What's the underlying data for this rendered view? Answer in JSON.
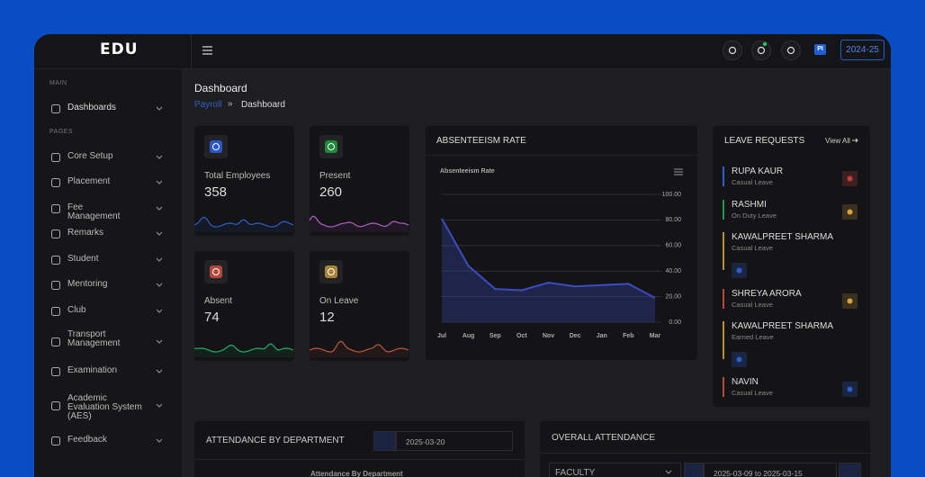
{
  "brand": "EDU",
  "topbar": {
    "avatar": "PI",
    "session": "2024-25"
  },
  "sidebar": {
    "sections": [
      {
        "label": "MAIN",
        "items": [
          "Dashboards"
        ]
      },
      {
        "label": "PAGES",
        "items": [
          "Core Setup",
          "Placement",
          "Fee Management",
          "Remarks",
          "Student",
          "Mentoring",
          "Club",
          "Transport Management",
          "Examination",
          "Academic Evaluation System (AES)",
          "Feedback"
        ]
      }
    ]
  },
  "header": {
    "title": "Dashboard",
    "breadcrumb": [
      "Payroll",
      "Dashboard"
    ]
  },
  "stats": [
    {
      "label": "Total Employees",
      "value": 358
    },
    {
      "label": "Present",
      "value": 260
    },
    {
      "label": "Absent",
      "value": 74
    },
    {
      "label": "On Leave",
      "value": 12
    }
  ],
  "absenteeism_card": {
    "title": "ABSENTEEISM RATE"
  },
  "chart_data": {
    "type": "area",
    "title": "Absenteeism Rate",
    "categories": [
      "Jul",
      "Aug",
      "Sep",
      "Oct",
      "Nov",
      "Dec",
      "Jan",
      "Feb",
      "Mar"
    ],
    "values": [
      81,
      44,
      26,
      25,
      31,
      28,
      29,
      30,
      19
    ],
    "color": "#3b4cc0",
    "ylim": [
      0,
      100
    ],
    "yticks": [
      {
        "value": 0,
        "label": "0.00"
      },
      {
        "value": 20,
        "label": "20.00"
      },
      {
        "value": 40,
        "label": "40.00"
      },
      {
        "value": 60,
        "label": "60.00"
      },
      {
        "value": 80,
        "label": "80.00"
      },
      {
        "value": 100,
        "label": "100.00"
      }
    ],
    "grid": true
  },
  "leave_requests": {
    "title": "LEAVE REQUESTS",
    "view_all": "View All",
    "items": [
      {
        "name": "RUPA KAUR",
        "type": "Casual Leave"
      },
      {
        "name": "RASHMI",
        "type": "On Duty Leave"
      },
      {
        "name": "KAWALPREET SHARMA",
        "type": "Casual Leave"
      },
      {
        "name": "SHREYA ARORA",
        "type": "Casual Leave"
      },
      {
        "name": "KAWALPREET SHARMA",
        "type": "Earned Leave"
      },
      {
        "name": "NAVIN",
        "type": "Casual Leave"
      }
    ]
  },
  "attendance_by_department": {
    "title": "ATTENDANCE BY DEPARTMENT",
    "date": "2025-03-20",
    "chart_title": "Attendance By Department"
  },
  "overall_attendance": {
    "title": "OVERALL ATTENDANCE",
    "filter": "FACULTY",
    "date_range": "2025-03-09 to 2025-03-15"
  }
}
